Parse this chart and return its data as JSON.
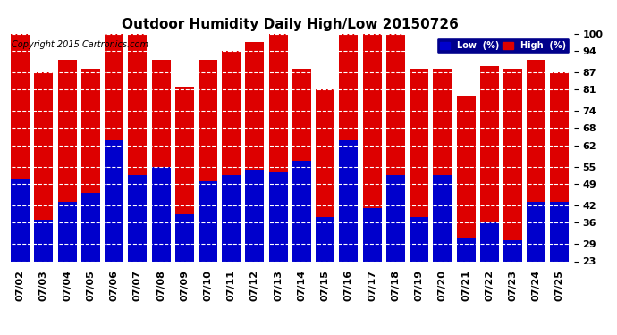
{
  "title": "Outdoor Humidity Daily High/Low 20150726",
  "copyright": "Copyright 2015 Cartronics.com",
  "legend_low": "Low  (%)",
  "legend_high": "High  (%)",
  "dates": [
    "07/02",
    "07/03",
    "07/04",
    "07/05",
    "07/06",
    "07/07",
    "07/08",
    "07/09",
    "07/10",
    "07/11",
    "07/12",
    "07/13",
    "07/14",
    "07/15",
    "07/16",
    "07/17",
    "07/18",
    "07/19",
    "07/20",
    "07/21",
    "07/22",
    "07/23",
    "07/24",
    "07/25"
  ],
  "high": [
    100,
    87,
    91,
    88,
    100,
    100,
    91,
    82,
    91,
    94,
    97,
    100,
    88,
    81,
    100,
    100,
    100,
    88,
    88,
    79,
    89,
    88,
    91,
    87
  ],
  "low": [
    51,
    37,
    43,
    46,
    64,
    52,
    55,
    39,
    50,
    52,
    54,
    53,
    57,
    38,
    64,
    41,
    52,
    38,
    52,
    31,
    36,
    30,
    43,
    43
  ],
  "bar_color_high": "#dd0000",
  "bar_color_low": "#0000cc",
  "background_color": "#ffffff",
  "grid_color": "#aaaaaa",
  "ylim_min": 23,
  "ylim_max": 100,
  "yticks": [
    23,
    29,
    36,
    42,
    49,
    55,
    62,
    68,
    74,
    81,
    87,
    94,
    100
  ],
  "title_fontsize": 11,
  "copyright_fontsize": 7,
  "tick_fontsize": 8,
  "bar_width": 0.8
}
